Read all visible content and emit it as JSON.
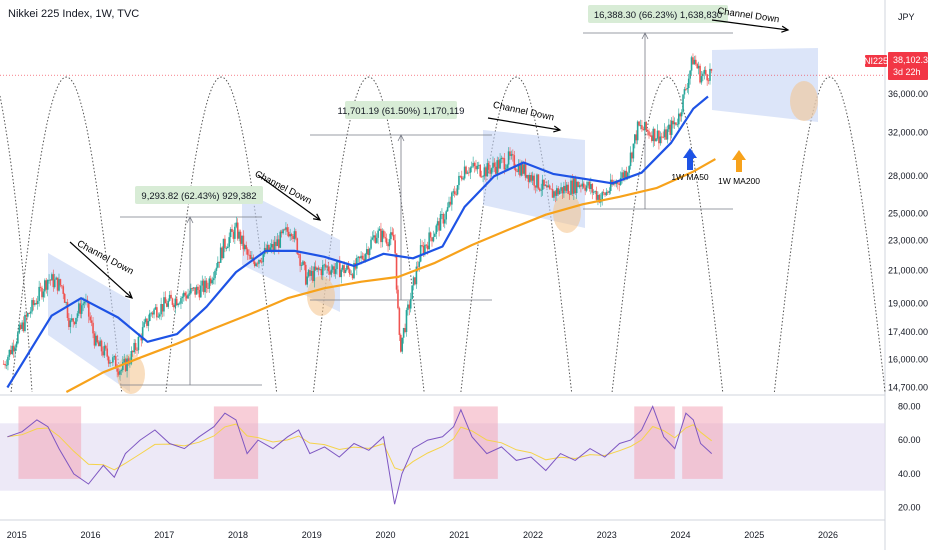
{
  "header": {
    "title": "Nikkei 225 Index, 1W, TVC"
  },
  "currency": "JPY",
  "symbol_tag": {
    "ticker": "NI225",
    "price": "38,102.37",
    "countdown": "3d 22h"
  },
  "colors": {
    "ma50": "#1e53e5",
    "ma200": "#f7a21b",
    "candle_up": "#26a69a",
    "candle_down": "#ef5350",
    "channel": "#c5d3f5",
    "circle": "#f4c38a",
    "rsi_line": "#7e57c2",
    "rsi_ma": "#f5d34a",
    "rsi_zone": "#f2a6b8",
    "price_tag": "#f23645"
  },
  "chart_data": [
    {
      "type": "line",
      "title": "Nikkei 225 Index, 1W, TVC",
      "x_ticks": [
        "2015",
        "2016",
        "2017",
        "2018",
        "2019",
        "2020",
        "2021",
        "2022",
        "2023",
        "2024",
        "2025",
        "2026"
      ],
      "y_ticks": [
        "40,000.00",
        "36,000.00",
        "32,000.00",
        "28,000.00",
        "25,000.00",
        "23,000.00",
        "21,000.00",
        "19,000.00",
        "17,400.00",
        "16,000.00",
        "14,700.00"
      ],
      "y_scale": "log",
      "ylim": [
        14500,
        44000
      ],
      "last_price": 38102.37,
      "series": [
        {
          "name": "1W MA50",
          "x": [
            2014.9,
            2015.5,
            2015.9,
            2016.4,
            2016.8,
            2017.2,
            2017.6,
            2018.0,
            2018.4,
            2018.8,
            2019.2,
            2019.6,
            2020.0,
            2020.4,
            2020.8,
            2021.1,
            2021.5,
            2021.9,
            2022.3,
            2022.7,
            2023.1,
            2023.5,
            2023.9,
            2024.2,
            2024.4
          ],
          "values": [
            14700,
            18300,
            19300,
            18200,
            16900,
            17300,
            18800,
            20900,
            22300,
            22300,
            21900,
            21300,
            22100,
            21800,
            22600,
            25500,
            28000,
            29200,
            28200,
            27800,
            27400,
            28300,
            31000,
            34400,
            35700
          ]
        },
        {
          "name": "1W MA200",
          "x": [
            2015.7,
            2016.2,
            2016.7,
            2017.2,
            2017.7,
            2018.2,
            2018.7,
            2019.2,
            2019.7,
            2020.2,
            2020.7,
            2021.2,
            2021.7,
            2022.2,
            2022.7,
            2023.2,
            2023.7,
            2024.2,
            2024.5
          ],
          "values": [
            14500,
            15400,
            16100,
            16800,
            17600,
            18400,
            19300,
            19900,
            20300,
            20600,
            21500,
            22700,
            23800,
            24900,
            25700,
            26300,
            27000,
            28400,
            29500
          ]
        }
      ],
      "annotations": [
        {
          "label": "Channel Down",
          "x": 2015.5
        },
        {
          "label": "Channel Down",
          "x": 2018.3
        },
        {
          "label": "Channel Down",
          "x": 2021.6
        },
        {
          "label": "Channel Down",
          "x": 2024.5
        },
        {
          "label": "1W MA50",
          "x": 2023.8
        },
        {
          "label": "1W MA200",
          "x": 2024.6
        }
      ],
      "measurements": [
        {
          "label": "9,293.82 (62.43%) 929,382",
          "from": 14900,
          "to": 24200
        },
        {
          "label": "11,701.19 (61.50%) 1,170,119",
          "from": 19000,
          "to": 30700
        },
        {
          "label": "16,388.30 (66.23%) 1,638,830",
          "from": 24700,
          "to": 41100
        }
      ]
    },
    {
      "type": "line",
      "title": "RSI",
      "y_ticks": [
        "80.00",
        "60.00",
        "40.00",
        "20.00"
      ],
      "ylim": [
        15,
        85
      ],
      "series": [
        {
          "name": "RSI",
          "x": [
            2014.9,
            2015.1,
            2015.3,
            2015.45,
            2015.6,
            2015.8,
            2016.0,
            2016.2,
            2016.35,
            2016.5,
            2016.7,
            2016.9,
            2017.1,
            2017.3,
            2017.5,
            2017.7,
            2017.85,
            2018.0,
            2018.15,
            2018.3,
            2018.5,
            2018.7,
            2018.85,
            2019.0,
            2019.2,
            2019.4,
            2019.6,
            2019.8,
            2020.0,
            2020.15,
            2020.25,
            2020.4,
            2020.6,
            2020.8,
            2020.95,
            2021.05,
            2021.2,
            2021.4,
            2021.6,
            2021.8,
            2022.0,
            2022.2,
            2022.4,
            2022.6,
            2022.8,
            2023.0,
            2023.2,
            2023.35,
            2023.5,
            2023.65,
            2023.8,
            2023.95,
            2024.1,
            2024.2,
            2024.3,
            2024.45
          ],
          "values": [
            62,
            65,
            72,
            68,
            55,
            40,
            34,
            45,
            38,
            52,
            60,
            66,
            58,
            55,
            62,
            68,
            76,
            72,
            52,
            60,
            55,
            62,
            66,
            52,
            56,
            50,
            58,
            54,
            62,
            22,
            40,
            55,
            60,
            62,
            68,
            78,
            62,
            52,
            56,
            48,
            50,
            42,
            52,
            48,
            55,
            50,
            58,
            60,
            66,
            80,
            62,
            55,
            76,
            72,
            58,
            52
          ]
        }
      ],
      "zones_y": [
        30,
        70
      ]
    }
  ]
}
